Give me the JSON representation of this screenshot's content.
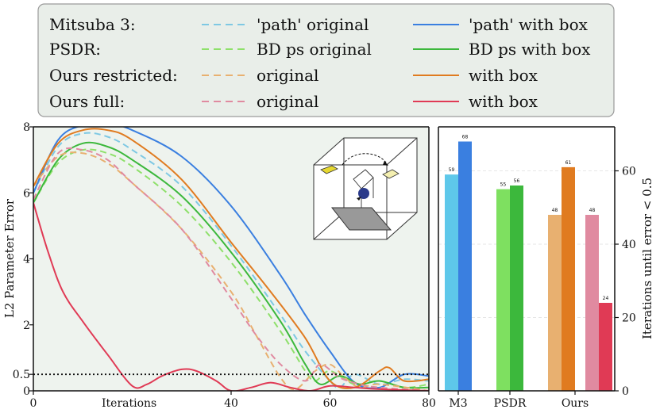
{
  "chart_data": [
    {
      "type": "line",
      "xlabel": "Iterations",
      "ylabel": "L2 Parameter Error",
      "xlim": [
        0,
        80
      ],
      "ylim": [
        0,
        8
      ],
      "x_ticks": [
        "0",
        "40",
        "60",
        "80"
      ],
      "y_ticks": [
        "0",
        "0.5",
        "2",
        "4",
        "6",
        "8"
      ],
      "threshold": 0.5,
      "grid": false,
      "legend_position": "top (above plots)",
      "legend_groups": [
        "Mitsuba 3:",
        "PSDR:",
        "Ours restricted:",
        "Ours full:"
      ],
      "series": [
        {
          "name": "'path' original",
          "group": "Mitsuba 3:",
          "style": "dashed",
          "color": "#7ec8e3",
          "points": [
            [
              0,
              6.0
            ],
            [
              5,
              7.4
            ],
            [
              10,
              7.8
            ],
            [
              15,
              7.7
            ],
            [
              20,
              7.3
            ],
            [
              30,
              6.2
            ],
            [
              40,
              4.4
            ],
            [
              50,
              2.3
            ],
            [
              55,
              1.2
            ],
            [
              60,
              0.3
            ],
            [
              62,
              0.1
            ],
            [
              65,
              0.5
            ],
            [
              70,
              0.2
            ],
            [
              75,
              0.35
            ],
            [
              80,
              0.3
            ]
          ]
        },
        {
          "name": "'path' with box",
          "group": "Mitsuba 3:",
          "style": "solid",
          "color": "#3a7fe0",
          "points": [
            [
              0,
              6.0
            ],
            [
              5,
              7.6
            ],
            [
              10,
              8.05
            ],
            [
              15,
              8.1
            ],
            [
              20,
              7.9
            ],
            [
              30,
              7.1
            ],
            [
              40,
              5.6
            ],
            [
              50,
              3.5
            ],
            [
              55,
              2.3
            ],
            [
              60,
              1.2
            ],
            [
              65,
              0.25
            ],
            [
              70,
              0.1
            ],
            [
              75,
              0.5
            ],
            [
              80,
              0.45
            ]
          ]
        },
        {
          "name": "BD ps original",
          "group": "PSDR:",
          "style": "dashed",
          "color": "#8ee06a",
          "points": [
            [
              0,
              5.7
            ],
            [
              5,
              6.9
            ],
            [
              10,
              7.3
            ],
            [
              15,
              7.2
            ],
            [
              20,
              6.8
            ],
            [
              30,
              5.6
            ],
            [
              40,
              3.9
            ],
            [
              50,
              1.8
            ],
            [
              55,
              0.6
            ],
            [
              57,
              0.3
            ],
            [
              60,
              0.6
            ],
            [
              65,
              0.2
            ],
            [
              70,
              0.3
            ],
            [
              75,
              0.1
            ],
            [
              80,
              0.2
            ]
          ]
        },
        {
          "name": "BD ps with box",
          "group": "PSDR:",
          "style": "solid",
          "color": "#3cb83c",
          "points": [
            [
              0,
              5.7
            ],
            [
              5,
              7.0
            ],
            [
              10,
              7.5
            ],
            [
              15,
              7.4
            ],
            [
              20,
              7.0
            ],
            [
              30,
              5.9
            ],
            [
              40,
              4.2
            ],
            [
              50,
              2.1
            ],
            [
              55,
              0.8
            ],
            [
              58,
              0.2
            ],
            [
              62,
              0.45
            ],
            [
              66,
              0.2
            ],
            [
              70,
              0.3
            ],
            [
              75,
              0.1
            ],
            [
              80,
              0.1
            ]
          ]
        },
        {
          "name": "original",
          "group": "Ours restricted:",
          "style": "dashed",
          "color": "#e8b070",
          "points": [
            [
              0,
              6.2
            ],
            [
              5,
              7.1
            ],
            [
              10,
              7.2
            ],
            [
              15,
              6.9
            ],
            [
              20,
              6.3
            ],
            [
              30,
              4.9
            ],
            [
              40,
              3.0
            ],
            [
              45,
              1.7
            ],
            [
              50,
              0.4
            ],
            [
              53,
              0.05
            ],
            [
              57,
              0.6
            ],
            [
              60,
              0.8
            ],
            [
              63,
              0.4
            ],
            [
              66,
              0.1
            ],
            [
              70,
              0.2
            ],
            [
              80,
              0.0
            ]
          ]
        },
        {
          "name": "with box",
          "group": "Ours restricted:",
          "style": "solid",
          "color": "#e07b20",
          "points": [
            [
              0,
              6.2
            ],
            [
              5,
              7.5
            ],
            [
              10,
              7.9
            ],
            [
              15,
              7.9
            ],
            [
              20,
              7.6
            ],
            [
              30,
              6.4
            ],
            [
              40,
              4.5
            ],
            [
              48,
              3.0
            ],
            [
              55,
              1.6
            ],
            [
              60,
              0.3
            ],
            [
              65,
              0.1
            ],
            [
              70,
              0.6
            ],
            [
              72,
              0.7
            ],
            [
              75,
              0.3
            ],
            [
              80,
              0.35
            ]
          ]
        },
        {
          "name": "original",
          "group": "Ours full:",
          "style": "dashed",
          "color": "#e08aa0",
          "points": [
            [
              0,
              5.8
            ],
            [
              5,
              7.2
            ],
            [
              10,
              7.3
            ],
            [
              15,
              7.0
            ],
            [
              20,
              6.3
            ],
            [
              30,
              4.9
            ],
            [
              40,
              2.8
            ],
            [
              45,
              1.7
            ],
            [
              50,
              0.8
            ],
            [
              55,
              0.3
            ],
            [
              58,
              0.8
            ],
            [
              62,
              0.4
            ],
            [
              66,
              0.2
            ],
            [
              70,
              0.1
            ],
            [
              80,
              0.0
            ]
          ]
        },
        {
          "name": "with box",
          "group": "Ours full:",
          "style": "solid",
          "color": "#e03a55",
          "points": [
            [
              0,
              5.7
            ],
            [
              3,
              4.2
            ],
            [
              6,
              3.0
            ],
            [
              10,
              2.1
            ],
            [
              15,
              1.1
            ],
            [
              20,
              0.15
            ],
            [
              23,
              0.2
            ],
            [
              26,
              0.45
            ],
            [
              30,
              0.65
            ],
            [
              33,
              0.6
            ],
            [
              37,
              0.3
            ],
            [
              40,
              0.0
            ],
            [
              44,
              0.1
            ],
            [
              48,
              0.25
            ],
            [
              52,
              0.1
            ],
            [
              56,
              0.0
            ],
            [
              60,
              0.15
            ],
            [
              65,
              0.1
            ],
            [
              70,
              0.05
            ],
            [
              80,
              0.0
            ]
          ]
        }
      ]
    },
    {
      "type": "bar",
      "ylabel": "Iterations until error < 0.5",
      "ylim": [
        0,
        72
      ],
      "y_ticks": [
        "0",
        "20",
        "40",
        "60"
      ],
      "categories": [
        "M3",
        "PSDR",
        "Ours"
      ],
      "grid": true,
      "bars": [
        {
          "category": "M3",
          "value": 59,
          "label": "59",
          "color": "#5ec8ea"
        },
        {
          "category": "M3",
          "value": 68,
          "label": "68",
          "color": "#3a7fe0"
        },
        {
          "category": "PSDR",
          "value": 55,
          "label": "55",
          "color": "#7ee060"
        },
        {
          "category": "PSDR",
          "value": 56,
          "label": "56",
          "color": "#3cb83c"
        },
        {
          "category": "Ours",
          "value": 48,
          "label": "48",
          "color": "#e8b070"
        },
        {
          "category": "Ours",
          "value": 61,
          "label": "61",
          "color": "#e07b20"
        },
        {
          "category": "Ours",
          "value": 48,
          "label": "48",
          "color": "#e08aa0"
        },
        {
          "category": "Ours",
          "value": 24,
          "label": "24",
          "color": "#e03a55"
        }
      ]
    }
  ]
}
